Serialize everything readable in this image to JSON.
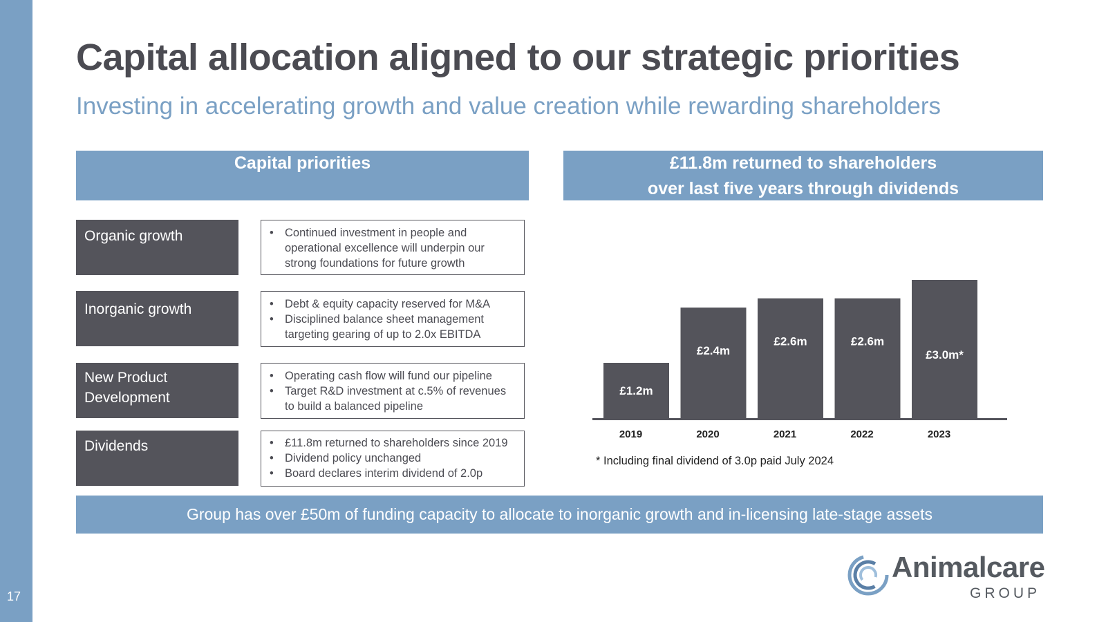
{
  "slide": {
    "page_number": "17",
    "title": "Capital allocation aligned to our strategic priorities",
    "subtitle": "Investing in accelerating growth and value creation while rewarding shareholders"
  },
  "left_panel": {
    "header": "Capital priorities",
    "priorities": [
      {
        "label": "Organic growth",
        "bullets": [
          "Continued investment in people and operational excellence will underpin our strong foundations for future growth"
        ]
      },
      {
        "label": "Inorganic growth",
        "bullets": [
          "Debt & equity capacity reserved for M&A",
          "Disciplined balance sheet management targeting gearing of up to 2.0x EBITDA"
        ]
      },
      {
        "label": "New Product Development",
        "bullets": [
          "Operating cash flow will fund our pipeline",
          "Target R&D investment at c.5% of revenues to build a balanced pipeline"
        ]
      },
      {
        "label": "Dividends",
        "bullets": [
          "£11.8m returned to shareholders since 2019",
          "Dividend policy unchanged",
          "Board declares interim dividend of 2.0p"
        ]
      }
    ]
  },
  "right_panel": {
    "header_line1": "£11.8m returned to shareholders",
    "header_line2": "over last five years through dividends",
    "footnote": "* Including final dividend of 3.0p paid July 2024"
  },
  "banner": "Group has over £50m of funding capacity to allocate to inorganic growth and in-licensing late-stage assets",
  "logo": {
    "name": "Animalcare",
    "sub": "GROUP"
  },
  "colors": {
    "accent": "#7aa0c4",
    "dark": "#54545b",
    "text": "#4b4b52"
  },
  "chart_data": {
    "type": "bar",
    "categories": [
      "2019",
      "2020",
      "2021",
      "2022",
      "2023"
    ],
    "values": [
      1.2,
      2.4,
      2.6,
      2.6,
      3.0
    ],
    "data_labels": [
      "£1.2m",
      "£2.4m",
      "£2.6m",
      "£2.6m",
      "£3.0m*"
    ],
    "title": "",
    "xlabel": "",
    "ylabel": "",
    "ylim": [
      0,
      3.0
    ],
    "grid": false,
    "legend": "none"
  }
}
